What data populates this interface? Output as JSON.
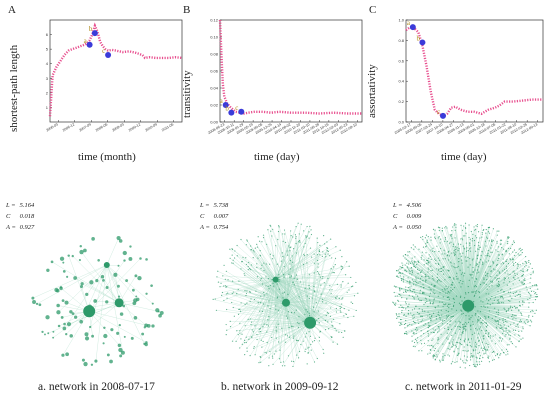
{
  "panels": [
    {
      "letter": "A",
      "chart_data": {
        "type": "line",
        "ylabel": "shortest-path length",
        "xlabel": "time (month)",
        "ylim": [
          0,
          7
        ],
        "yticks": [
          "1",
          "2",
          "3",
          "4",
          "5",
          "6"
        ],
        "xticks": [
          "2006-03",
          "2006-12",
          "2007-09",
          "2008-06",
          "2009-03",
          "2009-12",
          "2010-09",
          "2011-06"
        ],
        "x": [
          0,
          0.02,
          0.05,
          0.08,
          0.11,
          0.14,
          0.17,
          0.2,
          0.23,
          0.26,
          0.28,
          0.3,
          0.32,
          0.34,
          0.36,
          0.38,
          0.4,
          0.42,
          0.44,
          0.47,
          0.5,
          0.55,
          0.6,
          0.65,
          0.7,
          0.72,
          0.75,
          0.8,
          0.85,
          0.9,
          0.95,
          1.0
        ],
        "y": [
          0.4,
          3.2,
          3.8,
          4.2,
          4.6,
          4.9,
          5.0,
          5.1,
          5.2,
          5.3,
          5.4,
          5.6,
          6.0,
          6.6,
          6.2,
          5.5,
          5.2,
          5.0,
          4.9,
          4.95,
          4.9,
          4.8,
          4.85,
          4.75,
          4.6,
          4.4,
          4.45,
          4.4,
          4.4,
          4.4,
          4.45,
          4.4
        ],
        "markers": [
          {
            "label": "a",
            "x": 0.3,
            "y": 5.3
          },
          {
            "label": "b",
            "x": 0.34,
            "y": 6.1
          },
          {
            "label": "c",
            "x": 0.44,
            "y": 4.6
          }
        ],
        "color": "#e8508f",
        "marker_color": "#3b3bd9"
      }
    },
    {
      "letter": "B",
      "chart_data": {
        "type": "line",
        "ylabel": "transitivity",
        "xlabel": "time (day)",
        "ylim": [
          0,
          0.12
        ],
        "yticks": [
          "0.00",
          "0.02",
          "0.04",
          "0.06",
          "0.08",
          "0.10",
          "0.12"
        ],
        "xticks": [
          "2008-06-23",
          "2008-10-11",
          "2009-01-29",
          "2009-05-19",
          "2009-09-06",
          "2009-12-25",
          "2010-04-14",
          "2010-08-02",
          "2010-11-20",
          "2011-03-10",
          "2011-06-28",
          "2011-10-16",
          "2012-02-03",
          "2012-05-23",
          "2012-09-10"
        ],
        "x": [
          0,
          0.01,
          0.02,
          0.03,
          0.05,
          0.07,
          0.09,
          0.11,
          0.14,
          0.17,
          0.2,
          0.24,
          0.3,
          0.36,
          0.42,
          0.5,
          0.6,
          0.7,
          0.8,
          0.9,
          1.0
        ],
        "y": [
          0.12,
          0.08,
          0.045,
          0.03,
          0.022,
          0.018,
          0.015,
          0.012,
          0.011,
          0.01,
          0.011,
          0.012,
          0.012,
          0.011,
          0.012,
          0.011,
          0.011,
          0.01,
          0.011,
          0.01,
          0.01
        ],
        "markers": [
          {
            "label": "a",
            "x": 0.04,
            "y": 0.02
          },
          {
            "label": "b",
            "x": 0.08,
            "y": 0.011
          },
          {
            "label": "c",
            "x": 0.15,
            "y": 0.012
          }
        ],
        "color": "#e8508f",
        "marker_color": "#3b3bd9"
      }
    },
    {
      "letter": "C",
      "chart_data": {
        "type": "line",
        "ylabel": "assortativity",
        "xlabel": "time (day)",
        "ylim": [
          0,
          1.0
        ],
        "yticks": [
          "0.0",
          "0.2",
          "0.4",
          "0.6",
          "0.8",
          "1.0"
        ],
        "xticks": [
          "2006-02-17",
          "2006-09-05",
          "2007-03-24",
          "2007-10-10",
          "2008-04-27",
          "2008-11-13",
          "2009-06-01",
          "2009-12-18",
          "2010-07-06",
          "2011-01-22",
          "2011-08-10",
          "2012-02-26",
          "2012-09-13"
        ],
        "x": [
          0,
          0.03,
          0.06,
          0.09,
          0.12,
          0.15,
          0.18,
          0.21,
          0.24,
          0.27,
          0.3,
          0.33,
          0.36,
          0.4,
          0.45,
          0.5,
          0.55,
          0.6,
          0.65,
          0.68,
          0.72,
          0.78,
          0.85,
          0.92,
          1.0
        ],
        "y": [
          0.9,
          0.93,
          0.92,
          0.88,
          0.75,
          0.55,
          0.3,
          0.12,
          0.08,
          0.06,
          0.08,
          0.14,
          0.15,
          0.12,
          0.1,
          0.1,
          0.08,
          0.12,
          0.14,
          0.16,
          0.2,
          0.2,
          0.21,
          0.22,
          0.22
        ],
        "markers": [
          {
            "label": "a",
            "x": 0.05,
            "y": 0.93
          },
          {
            "label": "b",
            "x": 0.12,
            "y": 0.78
          },
          {
            "label": "c",
            "x": 0.27,
            "y": 0.06
          }
        ],
        "color": "#e8508f",
        "marker_color": "#3b3bd9"
      }
    }
  ],
  "networks": [
    {
      "L": "5.164",
      "C": "0.018",
      "A": "0.927",
      "caption": "a. network in 2008-07-17",
      "density": 120,
      "hubs": 3
    },
    {
      "L": "5.738",
      "C": "0.007",
      "A": "0.754",
      "caption": "b. network in 2009-09-12",
      "density": 520,
      "hubs": 3
    },
    {
      "L": "4.506",
      "C": "0.009",
      "A": "0.050",
      "caption": "c. network in 2011-01-29",
      "density": 1400,
      "hubs": 1
    }
  ],
  "stat_keys": {
    "L": "L =",
    "C": "C",
    "A": "A ="
  },
  "node_color": "#2e9a6a",
  "edge_color": "#7fc8a8"
}
